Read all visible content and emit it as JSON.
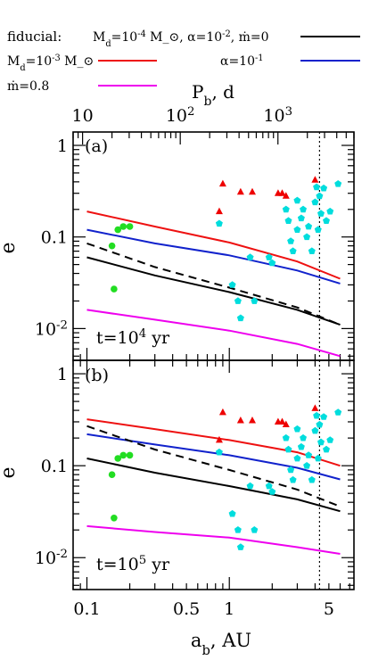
{
  "legend": {
    "fiducial_label": "fiducial:",
    "fiducial_params": "M_d=10^-4 M_⊙,  α=10^-2,  ṁ=0",
    "md_label": "M_d=10^-3 M_⊙",
    "alpha_label": "α=10^-1",
    "mdot_label": "ṁ=0.8",
    "colors": {
      "fiducial": "#000000",
      "md": "#ee1111",
      "alpha": "#1122cc",
      "mdot": "#ee00ee",
      "dashed": "#000000",
      "red_points": "#ee0000",
      "cyan_points": "#00dddd",
      "green_points": "#22dd22"
    }
  },
  "chart_data": [
    {
      "type": "scatter",
      "panel_label": "(a)",
      "time_label": "t=10^4 yr",
      "xlabel": "a_b, AU",
      "ylabel": "e",
      "top_axis_label": "P_b, d",
      "x_scale": "log",
      "y_scale": "log",
      "xlim": [
        0.08,
        7.5
      ],
      "ylim": [
        0.0045,
        1.4
      ],
      "top_axis_range_days": [
        8,
        6000
      ],
      "top_tick_labels": [
        "10",
        "10^2",
        "10^3"
      ],
      "y_tick_labels": [
        "1",
        "0.1",
        "10^-2"
      ],
      "vertical_dotted_line_x": 4.3,
      "series": [
        {
          "name": "fiducial",
          "style": "solid",
          "color": "#000000",
          "x": [
            0.1,
            0.3,
            1,
            3,
            6
          ],
          "y": [
            0.06,
            0.038,
            0.025,
            0.016,
            0.011
          ]
        },
        {
          "name": "M_d=10^-3 M_⊙",
          "style": "solid",
          "color": "#ee1111",
          "x": [
            0.1,
            0.3,
            1,
            3,
            6
          ],
          "y": [
            0.19,
            0.13,
            0.087,
            0.054,
            0.035
          ]
        },
        {
          "name": "α=10^-1",
          "style": "solid",
          "color": "#1122cc",
          "x": [
            0.1,
            0.3,
            1,
            3,
            6
          ],
          "y": [
            0.12,
            0.085,
            0.063,
            0.043,
            0.031
          ]
        },
        {
          "name": "ṁ=0.8",
          "style": "solid",
          "color": "#ee00ee",
          "x": [
            0.1,
            0.3,
            1,
            3,
            6
          ],
          "y": [
            0.016,
            0.0125,
            0.0095,
            0.0068,
            0.005
          ]
        },
        {
          "style": "dashed",
          "color": "#000000",
          "x": [
            0.1,
            0.3,
            1,
            3,
            6
          ],
          "y": [
            0.085,
            0.047,
            0.028,
            0.017,
            0.011
          ]
        }
      ],
      "points": {
        "red_triangles": {
          "x": [
            0.85,
            0.9,
            1.2,
            1.45,
            2.2,
            2.35,
            2.5,
            4.0
          ],
          "y": [
            0.19,
            0.38,
            0.31,
            0.31,
            0.3,
            0.3,
            0.28,
            0.42
          ]
        },
        "cyan_pentagons": {
          "x": [
            0.85,
            1.05,
            1.15,
            1.2,
            1.4,
            1.5,
            1.9,
            2.0,
            2.5,
            2.6,
            2.7,
            2.8,
            3.0,
            3.0,
            3.2,
            3.3,
            3.5,
            3.6,
            3.8,
            4.0,
            4.1,
            4.2,
            4.3,
            4.4,
            4.6,
            4.8,
            5.1,
            5.8
          ],
          "y": [
            0.14,
            0.03,
            0.02,
            0.013,
            0.06,
            0.02,
            0.06,
            0.052,
            0.2,
            0.15,
            0.09,
            0.07,
            0.25,
            0.12,
            0.16,
            0.2,
            0.1,
            0.13,
            0.07,
            0.24,
            0.35,
            0.12,
            0.28,
            0.18,
            0.34,
            0.15,
            0.19,
            0.38
          ]
        },
        "green_circles": {
          "x": [
            0.15,
            0.155,
            0.165,
            0.18,
            0.2
          ],
          "y": [
            0.08,
            0.027,
            0.12,
            0.13,
            0.13
          ]
        }
      }
    },
    {
      "type": "scatter",
      "panel_label": "(b)",
      "time_label": "t=10^5 yr",
      "xlabel": "a_b, AU",
      "ylabel": "e",
      "x_scale": "log",
      "y_scale": "log",
      "xlim": [
        0.08,
        7.5
      ],
      "ylim": [
        0.0045,
        1.4
      ],
      "x_tick_labels": [
        "0.1",
        "0.5",
        "1",
        "5"
      ],
      "y_tick_labels": [
        "1",
        "0.1",
        "10^-2"
      ],
      "vertical_dotted_line_x": 4.3,
      "series": [
        {
          "name": "fiducial",
          "style": "solid",
          "color": "#000000",
          "x": [
            0.1,
            0.3,
            1,
            3,
            6
          ],
          "y": [
            0.12,
            0.084,
            0.06,
            0.043,
            0.032
          ]
        },
        {
          "name": "M_d=10^-3 M_⊙",
          "style": "solid",
          "color": "#ee1111",
          "x": [
            0.1,
            0.3,
            1,
            3,
            6
          ],
          "y": [
            0.32,
            0.25,
            0.19,
            0.14,
            0.1
          ]
        },
        {
          "name": "α=10^-1",
          "style": "solid",
          "color": "#1122cc",
          "x": [
            0.1,
            0.3,
            1,
            3,
            6
          ],
          "y": [
            0.22,
            0.17,
            0.13,
            0.095,
            0.071
          ]
        },
        {
          "name": "ṁ=0.8",
          "style": "solid",
          "color": "#ee00ee",
          "x": [
            0.1,
            0.3,
            1,
            3,
            6
          ],
          "y": [
            0.022,
            0.019,
            0.0165,
            0.013,
            0.011
          ]
        },
        {
          "style": "dashed",
          "color": "#000000",
          "x": [
            0.1,
            0.3,
            1,
            3,
            6
          ],
          "y": [
            0.27,
            0.15,
            0.09,
            0.055,
            0.036
          ]
        }
      ],
      "points": {
        "red_triangles": {
          "x": [
            0.85,
            0.9,
            1.2,
            1.45,
            2.2,
            2.35,
            2.5,
            4.0
          ],
          "y": [
            0.19,
            0.38,
            0.31,
            0.31,
            0.3,
            0.3,
            0.28,
            0.42
          ]
        },
        "cyan_pentagons": {
          "x": [
            0.85,
            1.05,
            1.15,
            1.2,
            1.4,
            1.5,
            1.9,
            2.0,
            2.5,
            2.6,
            2.7,
            2.8,
            3.0,
            3.0,
            3.2,
            3.3,
            3.5,
            3.6,
            3.8,
            4.0,
            4.1,
            4.2,
            4.3,
            4.4,
            4.6,
            4.8,
            5.1,
            5.8
          ],
          "y": [
            0.14,
            0.03,
            0.02,
            0.013,
            0.06,
            0.02,
            0.06,
            0.052,
            0.2,
            0.15,
            0.09,
            0.07,
            0.25,
            0.12,
            0.16,
            0.2,
            0.1,
            0.13,
            0.07,
            0.24,
            0.35,
            0.12,
            0.28,
            0.18,
            0.34,
            0.15,
            0.19,
            0.38
          ]
        },
        "green_circles": {
          "x": [
            0.15,
            0.155,
            0.165,
            0.18,
            0.2
          ],
          "y": [
            0.08,
            0.027,
            0.12,
            0.13,
            0.13
          ]
        }
      }
    }
  ]
}
